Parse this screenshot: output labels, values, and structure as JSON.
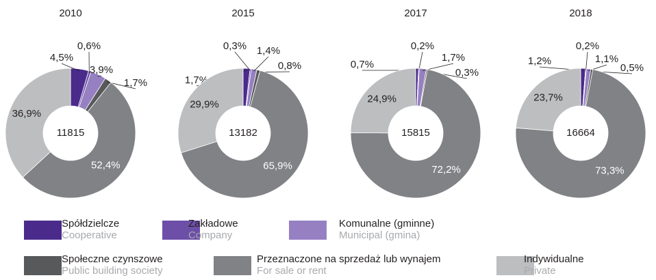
{
  "chart_data": [
    {
      "type": "pie",
      "title": "2010",
      "total": 11815,
      "values": [
        4.5,
        0.6,
        3.9,
        1.7,
        52.4,
        36.9
      ],
      "value_labels": [
        "4,5%",
        "0,6%",
        "3,9%",
        "1,7%",
        "52,4%",
        "36,9%"
      ]
    },
    {
      "type": "pie",
      "title": "2015",
      "total": 13182,
      "values": [
        1.7,
        0.3,
        1.4,
        0.8,
        65.9,
        29.9
      ],
      "value_labels": [
        "1,7%",
        "0,3%",
        "1,4%",
        "0,8%",
        "65,9%",
        "29,9%"
      ]
    },
    {
      "type": "pie",
      "title": "2017",
      "total": 15815,
      "values": [
        0.7,
        0.2,
        1.7,
        0.3,
        72.2,
        24.9
      ],
      "value_labels": [
        "0,7%",
        "0,2%",
        "1,7%",
        "0,3%",
        "72,2%",
        "24,9%"
      ]
    },
    {
      "type": "pie",
      "title": "2018",
      "total": 16664,
      "values": [
        1.2,
        0.2,
        1.1,
        0.5,
        73.3,
        23.7
      ],
      "value_labels": [
        "1,2%",
        "0,2%",
        "1,1%",
        "0,5%",
        "73,3%",
        "23,7%"
      ]
    }
  ],
  "legend": {
    "items": [
      {
        "name": "Spółdzielcze",
        "name_en": "Cooperative",
        "color": "#4a2b8c"
      },
      {
        "name": "Zakładowe",
        "name_en": "Company",
        "color": "#6d4fa8"
      },
      {
        "name": "Komunalne (gminne)",
        "name_en": "Municipal (gmina)",
        "color": "#9680c2"
      },
      {
        "name": "Społeczne czynszowe",
        "name_en": "Public building society",
        "color": "#58595b"
      },
      {
        "name": "Przeznaczone na sprzedaż lub wynajem",
        "name_en": "For sale or rent",
        "color": "#808285"
      },
      {
        "name": "Indywidualne",
        "name_en": "Private",
        "color": "#bcbec0"
      }
    ]
  }
}
